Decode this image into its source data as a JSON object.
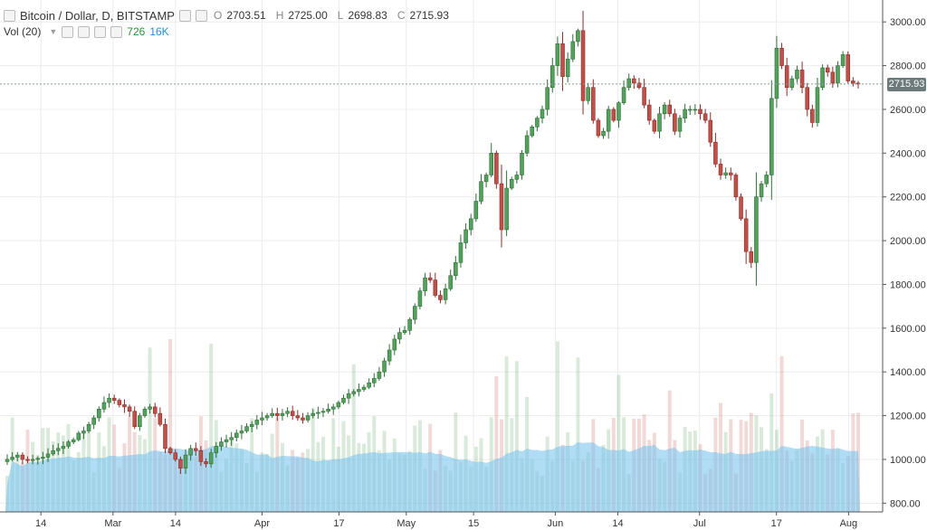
{
  "header": {
    "title": "Bitcoin / Dollar, D, BITSTAMP",
    "ohlc": {
      "o_label": "O",
      "o": "2703.51",
      "h_label": "H",
      "h": "2725.00",
      "l_label": "L",
      "l": "2698.83",
      "c_label": "C",
      "c": "2715.93"
    },
    "vol_label": "Vol (20)",
    "vol_value": "726",
    "vol_ma": "16K"
  },
  "last_price_label": "2715.93",
  "colors": {
    "up": "#53a15c",
    "down": "#c0504a",
    "vol_ma_fill": "#7cc4ef",
    "price_tag": "#6c7a7b",
    "grid": "#ececec"
  },
  "chart_data": {
    "type": "candlestick",
    "symbol": "Bitcoin / Dollar",
    "interval": "D",
    "exchange": "BITSTAMP",
    "y_axis": {
      "ticks": [
        "800.00",
        "1000.00",
        "1200.00",
        "1400.00",
        "1600.00",
        "1800.00",
        "2000.00",
        "2200.00",
        "2400.00",
        "2600.00",
        "2800.00",
        "3000.00"
      ],
      "ylim": [
        760,
        3100
      ]
    },
    "x_axis": {
      "ticks": [
        "14",
        "Mar",
        "14",
        "Apr",
        "17",
        "May",
        "15",
        "Jun",
        "14",
        "Jul",
        "17",
        "Aug"
      ]
    },
    "x_tick_dates": [
      "2017-02-14",
      "2017-03-01",
      "2017-03-14",
      "2017-04-01",
      "2017-04-17",
      "2017-05-01",
      "2017-05-15",
      "2017-06-01",
      "2017-06-14",
      "2017-07-01",
      "2017-07-17",
      "2017-08-01"
    ],
    "first_date": "2017-02-07",
    "last_date": "2017-08-03",
    "last_price": 2715.93,
    "close_series": [
      1000,
      1010,
      1020,
      1000,
      995,
      1000,
      1005,
      1010,
      1025,
      1040,
      1050,
      1060,
      1080,
      1090,
      1120,
      1130,
      1160,
      1190,
      1230,
      1260,
      1280,
      1270,
      1250,
      1240,
      1220,
      1150,
      1200,
      1230,
      1240,
      1210,
      1160,
      1050,
      1030,
      1000,
      960,
      1020,
      1050,
      1040,
      990,
      980,
      1030,
      1060,
      1080,
      1090,
      1100,
      1120,
      1130,
      1150,
      1160,
      1180,
      1190,
      1200,
      1210,
      1200,
      1210,
      1220,
      1200,
      1190,
      1180,
      1200,
      1210,
      1215,
      1220,
      1230,
      1240,
      1260,
      1280,
      1300,
      1310,
      1320,
      1330,
      1350,
      1370,
      1400,
      1450,
      1500,
      1550,
      1580,
      1590,
      1640,
      1700,
      1770,
      1830,
      1820,
      1750,
      1730,
      1780,
      1840,
      1900,
      1990,
      2050,
      2100,
      2180,
      2270,
      2300,
      2400,
      2260,
      2050,
      2240,
      2280,
      2300,
      2400,
      2480,
      2520,
      2560,
      2600,
      2700,
      2800,
      2900,
      2750,
      2830,
      2910,
      2960,
      2640,
      2700,
      2550,
      2480,
      2500,
      2600,
      2550,
      2630,
      2700,
      2740,
      2720,
      2700,
      2620,
      2550,
      2500,
      2580,
      2620,
      2580,
      2500,
      2560,
      2600,
      2600,
      2600,
      2580,
      2550,
      2450,
      2350,
      2300,
      2310,
      2300,
      2200,
      2100,
      1950,
      1900,
      2200,
      2260,
      2300,
      2650,
      2880,
      2800,
      2700,
      2740,
      2780,
      2700,
      2600,
      2540,
      2700,
      2790,
      2770,
      2720,
      2800,
      2850,
      2730,
      2720,
      2716
    ],
    "volume_shown": true,
    "volume_ma_period": 20,
    "grid": true
  }
}
